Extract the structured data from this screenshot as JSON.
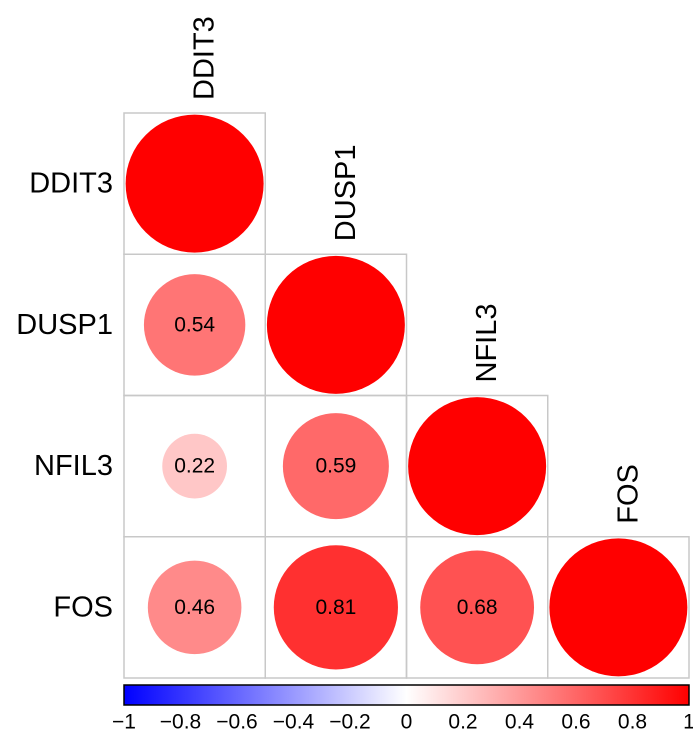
{
  "chart_data": {
    "type": "heatmap",
    "subtype": "correlation-matrix-lower-triangle",
    "variables": [
      "DDIT3",
      "DUSP1",
      "NFIL3",
      "FOS"
    ],
    "matrix": [
      [
        1,
        0.54,
        0.22,
        0.46
      ],
      [
        0.54,
        1,
        0.59,
        0.81
      ],
      [
        0.22,
        0.59,
        1,
        0.68
      ],
      [
        0.46,
        0.81,
        0.68,
        1
      ]
    ],
    "cell_labels": [
      {
        "row": 1,
        "col": 0,
        "text": "0.54"
      },
      {
        "row": 2,
        "col": 0,
        "text": "0.22"
      },
      {
        "row": 2,
        "col": 1,
        "text": "0.59"
      },
      {
        "row": 3,
        "col": 0,
        "text": "0.46"
      },
      {
        "row": 3,
        "col": 1,
        "text": "0.81"
      },
      {
        "row": 3,
        "col": 2,
        "text": "0.68"
      }
    ],
    "colorbar": {
      "range": [
        -1,
        1
      ],
      "ticks": [
        "−1",
        "−0.8",
        "−0.6",
        "−0.4",
        "−0.2",
        "0",
        "0.2",
        "0.4",
        "0.6",
        "0.8",
        "1"
      ],
      "colors": {
        "negative": "#0000ff",
        "zero": "#ffffff",
        "positive": "#ff0000"
      }
    },
    "grid": true,
    "legend": "bottom"
  }
}
